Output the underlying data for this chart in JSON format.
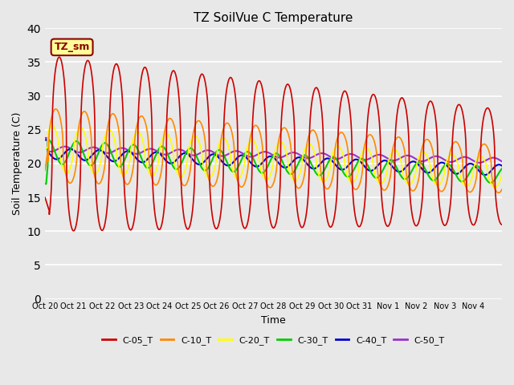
{
  "title": "TZ SoilVue C Temperature",
  "xlabel": "Time",
  "ylabel": "Soil Temperature (C)",
  "ylim": [
    0,
    40
  ],
  "yticks": [
    0,
    5,
    10,
    15,
    20,
    25,
    30,
    35,
    40
  ],
  "bg_color": "#e8e8e8",
  "annotation_text": "TZ_sm",
  "annotation_color": "#8B0000",
  "annotation_bg": "#ffff99",
  "annotation_border": "#8B0000",
  "series_colors": [
    "#cc0000",
    "#ff8800",
    "#ffff00",
    "#00cc00",
    "#0000cc",
    "#9933cc"
  ],
  "series_labels": [
    "C-05_T",
    "C-10_T",
    "C-20_T",
    "C-30_T",
    "C-40_T",
    "C-50_T"
  ],
  "xtick_labels": [
    "Oct 20",
    "Oct 21",
    "Oct 22",
    "Oct 23",
    "Oct 24",
    "Oct 25",
    "Oct 26",
    "Oct 27",
    "Oct 28",
    "Oct 29",
    "Oct 30",
    "Oct 31",
    "Nov 1",
    "Nov 2",
    "Nov 3",
    "Nov 4"
  ],
  "n_days": 16,
  "points_per_day": 240
}
